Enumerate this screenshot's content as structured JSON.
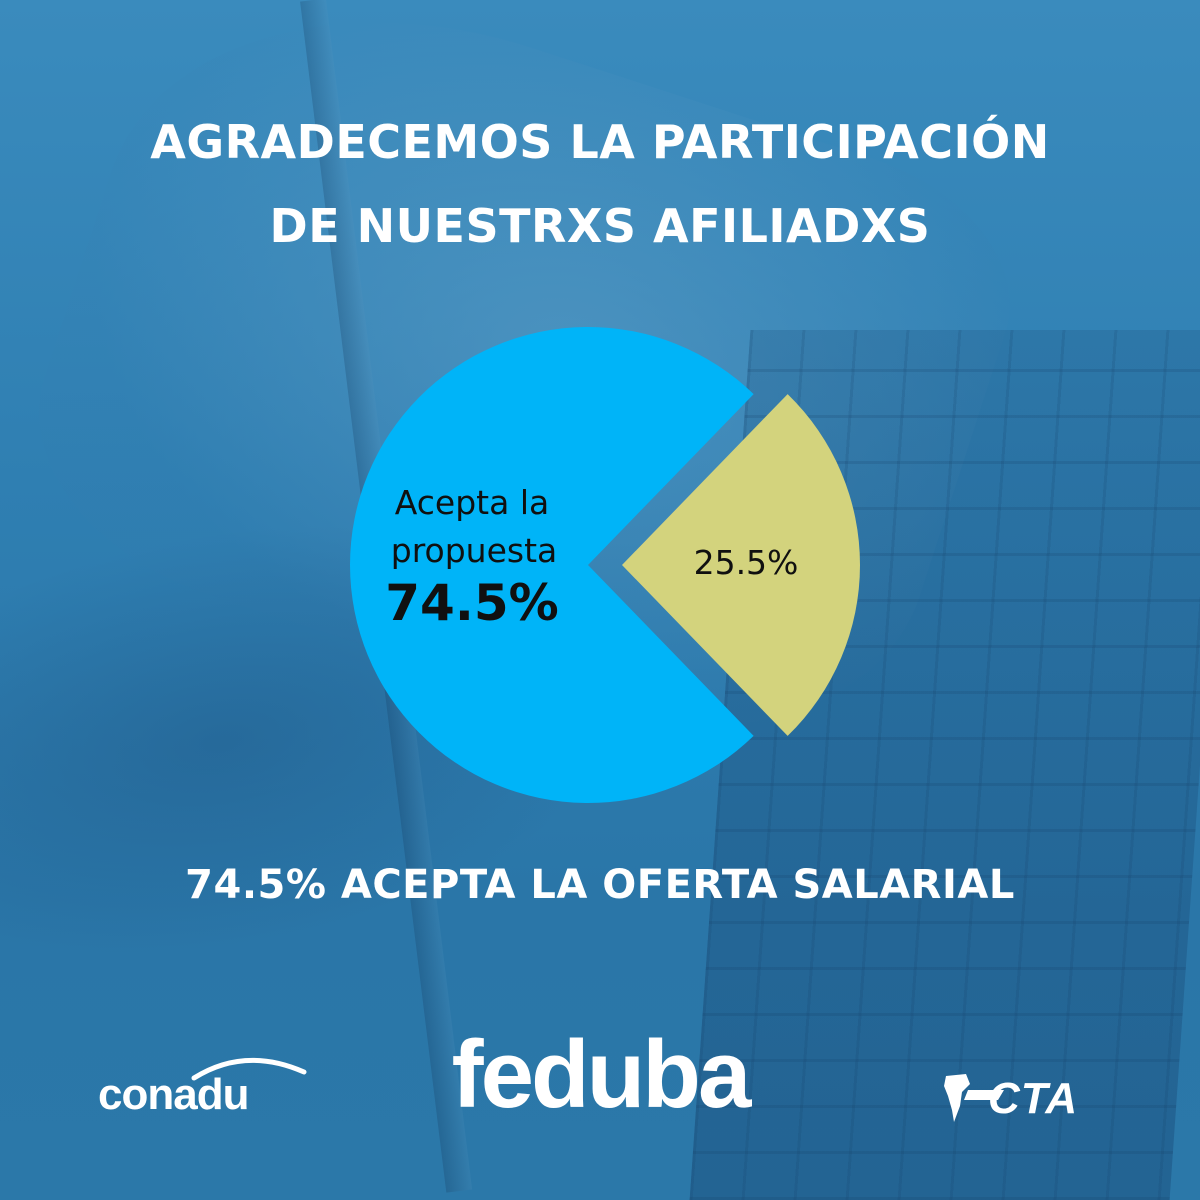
{
  "header": {
    "title_line1": "AGRADECEMOS LA PARTICIPACIÓN",
    "title_line2": "DE NUESTRXS AFILIADXS"
  },
  "chart_data": {
    "type": "pie",
    "title": "",
    "slices": [
      {
        "label_line1": "Acepta la",
        "label_line2": "propuesta",
        "value": 74.5,
        "value_label": "74.5%",
        "color": "#00b4f8"
      },
      {
        "label_line1": "",
        "label_line2": "",
        "value": 25.5,
        "value_label": "25.5%",
        "color": "#d3d37d"
      }
    ],
    "exploded_slice": 1,
    "legend": "none"
  },
  "footer": {
    "summary": "74.5% ACEPTA LA OFERTA SALARIAL",
    "logos": {
      "left": "conadu",
      "center": "feduba",
      "right": "CTA"
    }
  },
  "colors": {
    "background": "#2f7fb2",
    "text": "#ffffff",
    "slice_accept": "#00b4f8",
    "slice_other": "#d3d37d"
  }
}
